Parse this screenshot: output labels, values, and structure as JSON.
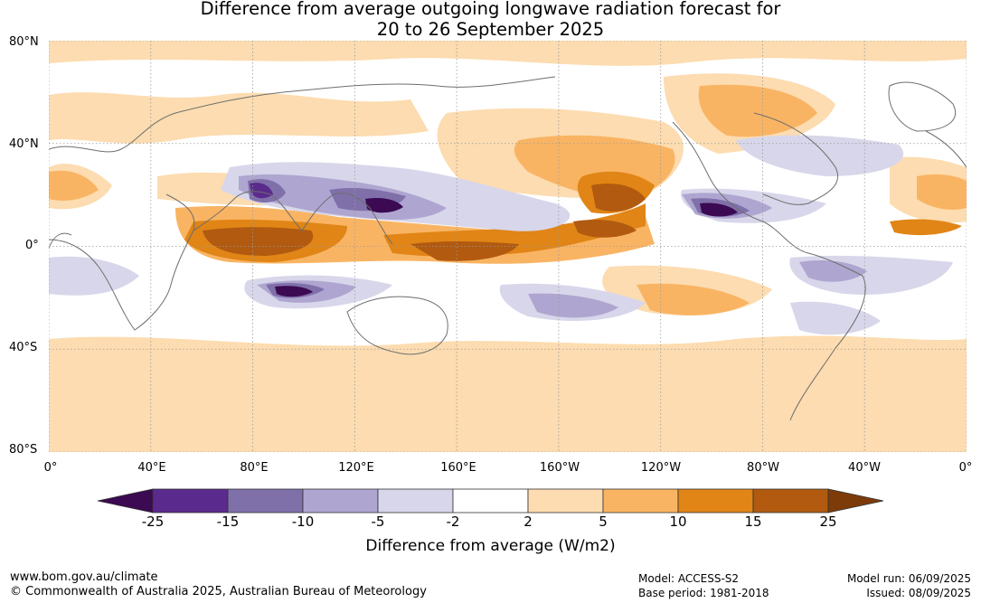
{
  "title_line1": "Difference from average outgoing longwave radiation forecast for",
  "title_line2": "20 to 26 September 2025",
  "lat_labels": [
    "80°N",
    "40°N",
    "0°",
    "40°S",
    "80°S"
  ],
  "lon_labels": [
    "0°",
    "40°E",
    "80°E",
    "120°E",
    "160°E",
    "160°W",
    "120°W",
    "80°W",
    "40°W",
    "0°"
  ],
  "legend": {
    "title": "Difference from average (W/m2)",
    "ticks": [
      "-25",
      "-15",
      "-10",
      "-5",
      "-2",
      "2",
      "5",
      "10",
      "15",
      "25"
    ],
    "colors": [
      "#3b0a52",
      "#5a2a8c",
      "#8070aa",
      "#aea6d0",
      "#d8d6ea",
      "#ffffff",
      "#fcdcb0",
      "#f9b463",
      "#e08516",
      "#b15a10",
      "#7e3b0a"
    ]
  },
  "footer": {
    "website": "www.bom.gov.au/climate",
    "copyright": "© Commonwealth of Australia 2025, Australian Bureau of Meteorology",
    "model": "Model: ACCESS-S2",
    "base_period": "Base period: 1981-2018",
    "model_run": "Model run: 06/09/2025",
    "issued": "Issued: 08/09/2025"
  }
}
